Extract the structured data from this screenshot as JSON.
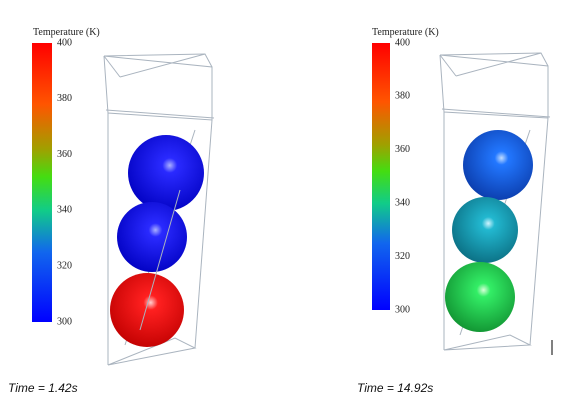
{
  "panels": [
    {
      "colorbar": {
        "title": "Temperature (K)",
        "ticks": [
          400,
          380,
          360,
          340,
          320,
          300
        ]
      },
      "caption": "Time = 1.42s"
    },
    {
      "colorbar": {
        "title": "Temperature (K)",
        "ticks": [
          400,
          380,
          360,
          340,
          320,
          300
        ]
      },
      "caption": "Time = 14.92s"
    }
  ]
}
